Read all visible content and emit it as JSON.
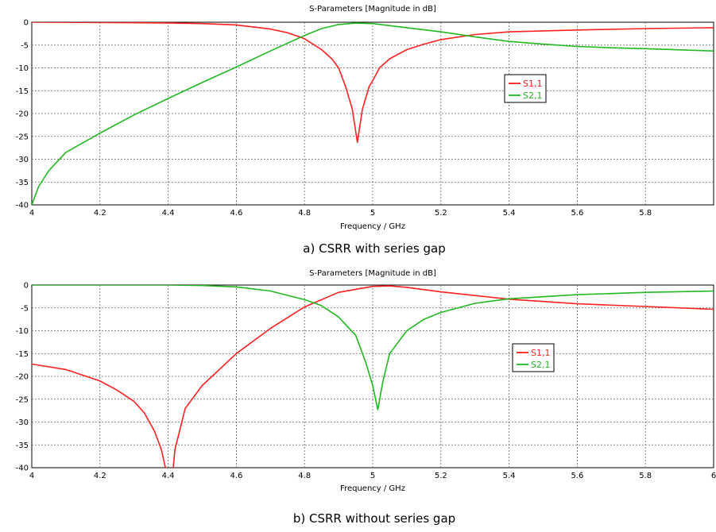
{
  "chart_data": [
    {
      "type": "line",
      "title": "S-Parameters [Magnitude in dB]",
      "xlabel": "Frequency / GHz",
      "ylabel": "",
      "caption": "a) CSRR with series gap",
      "xlim": [
        4,
        6
      ],
      "ylim": [
        -40,
        0
      ],
      "xticks": [
        "4",
        "4.2",
        "4.4",
        "4.6",
        "4.8",
        "5",
        "5.2",
        "5.4",
        "5.6",
        "5.8"
      ],
      "yticks": [
        "0",
        "-5",
        "-10",
        "-15",
        "-20",
        "-25",
        "-30",
        "-35",
        "-40"
      ],
      "grid": true,
      "legend_position": "right",
      "series": [
        {
          "name": "S1,1",
          "color": "#ff2020",
          "x": [
            4.0,
            4.2,
            4.4,
            4.5,
            4.6,
            4.7,
            4.75,
            4.8,
            4.85,
            4.88,
            4.9,
            4.92,
            4.94,
            4.955,
            4.97,
            4.99,
            5.0,
            5.02,
            5.05,
            5.1,
            5.15,
            5.2,
            5.3,
            5.4,
            5.6,
            5.8,
            6.0
          ],
          "y": [
            0,
            -0.05,
            -0.15,
            -0.3,
            -0.6,
            -1.5,
            -2.3,
            -3.6,
            -6,
            -8,
            -10,
            -14,
            -19,
            -26.3,
            -19,
            -14,
            -12.8,
            -10,
            -8,
            -6,
            -4.8,
            -3.8,
            -2.7,
            -2.1,
            -1.7,
            -1.4,
            -1.2
          ]
        },
        {
          "name": "S2,1",
          "color": "#22b822",
          "x": [
            4.0,
            4.02,
            4.05,
            4.1,
            4.2,
            4.3,
            4.4,
            4.5,
            4.6,
            4.7,
            4.8,
            4.85,
            4.9,
            4.95,
            5.0,
            5.1,
            5.2,
            5.3,
            5.4,
            5.5,
            5.6,
            5.7,
            5.8,
            6.0
          ],
          "y": [
            -40,
            -36,
            -32.5,
            -28.5,
            -24.3,
            -20.3,
            -16.7,
            -13.2,
            -9.8,
            -6.3,
            -2.9,
            -1.4,
            -0.5,
            -0.2,
            -0.3,
            -1.2,
            -2.1,
            -3.2,
            -4.2,
            -4.8,
            -5.3,
            -5.6,
            -5.8,
            -6.3
          ]
        }
      ]
    },
    {
      "type": "line",
      "title": "S-Parameters [Magnitude in dB]",
      "xlabel": "Frequency / GHz",
      "ylabel": "",
      "caption": "b) CSRR without series gap",
      "xlim": [
        4,
        6
      ],
      "ylim": [
        -40,
        0
      ],
      "xticks": [
        "4",
        "4.2",
        "4.4",
        "4.6",
        "4.8",
        "5",
        "5.2",
        "5.4",
        "5.6",
        "5.8",
        "6"
      ],
      "yticks": [
        "0",
        "-5",
        "-10",
        "-15",
        "-20",
        "-25",
        "-30",
        "-35",
        "-40"
      ],
      "grid": true,
      "legend_position": "right",
      "series": [
        {
          "name": "S1,1",
          "color": "#ff2020",
          "x": [
            4.0,
            4.1,
            4.2,
            4.25,
            4.3,
            4.33,
            4.36,
            4.38,
            4.392,
            4.395,
            null,
            4.415,
            4.42,
            4.45,
            4.5,
            4.6,
            4.7,
            4.8,
            4.9,
            5.0,
            5.05,
            5.1,
            5.2,
            5.3,
            5.4,
            5.6,
            5.8,
            6.0
          ],
          "y": [
            -17.3,
            -18.5,
            -21,
            -23,
            -25.5,
            -28,
            -32,
            -36,
            -40,
            -40,
            null,
            -40,
            -36,
            -27,
            -22,
            -15,
            -9.5,
            -4.8,
            -1.6,
            -0.3,
            -0.2,
            -0.5,
            -1.5,
            -2.3,
            -3.1,
            -4.1,
            -4.7,
            -5.3
          ]
        },
        {
          "name": "S2,1",
          "color": "#22b822",
          "x": [
            4.0,
            4.2,
            4.4,
            4.5,
            4.6,
            4.7,
            4.8,
            4.85,
            4.9,
            4.95,
            4.98,
            5.0,
            5.015,
            5.03,
            5.05,
            5.1,
            5.15,
            5.2,
            5.3,
            5.4,
            5.6,
            5.8,
            6.0
          ],
          "y": [
            0,
            0,
            0,
            -0.1,
            -0.4,
            -1.3,
            -3.2,
            -4.5,
            -7,
            -11,
            -17,
            -22,
            -27.3,
            -21,
            -15,
            -10,
            -7.5,
            -6,
            -4,
            -3,
            -2.1,
            -1.6,
            -1.3
          ]
        }
      ]
    }
  ]
}
